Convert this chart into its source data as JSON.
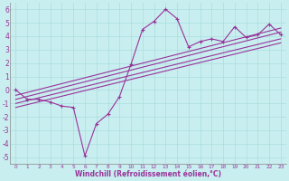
{
  "background_color": "#c8eef0",
  "grid_color": "#aadddd",
  "line_color": "#993399",
  "x_label": "Windchill (Refroidissement éolien,°C)",
  "xlim": [
    -0.5,
    23.5
  ],
  "ylim": [
    -5.5,
    6.5
  ],
  "xticks": [
    0,
    1,
    2,
    3,
    4,
    5,
    6,
    7,
    8,
    9,
    10,
    11,
    12,
    13,
    14,
    15,
    16,
    17,
    18,
    19,
    20,
    21,
    22,
    23
  ],
  "yticks": [
    -5,
    -4,
    -3,
    -2,
    -1,
    0,
    1,
    2,
    3,
    4,
    5,
    6
  ],
  "main_line_x": [
    0,
    1,
    2,
    3,
    4,
    5,
    6,
    7,
    8,
    9,
    10,
    11,
    12,
    13,
    14,
    15,
    16,
    17,
    18,
    19,
    20,
    21,
    22,
    23
  ],
  "main_line_y": [
    0,
    -0.7,
    -0.7,
    -0.9,
    -1.2,
    -1.3,
    -4.9,
    -2.5,
    -1.8,
    -0.5,
    1.9,
    4.5,
    5.1,
    6.0,
    5.3,
    3.2,
    3.6,
    3.8,
    3.6,
    4.7,
    3.9,
    4.1,
    4.9,
    4.1
  ],
  "line2_x": [
    0,
    23
  ],
  "line2_y": [
    -0.7,
    4.3
  ],
  "line3_x": [
    0,
    23
  ],
  "line3_y": [
    -0.4,
    4.6
  ],
  "line4_x": [
    0,
    23
  ],
  "line4_y": [
    -1.0,
    3.8
  ],
  "line5_x": [
    0,
    23
  ],
  "line5_y": [
    -1.3,
    3.5
  ],
  "xlabel_fontsize": 5.5,
  "ytick_fontsize": 5.5,
  "xtick_fontsize": 4.2
}
